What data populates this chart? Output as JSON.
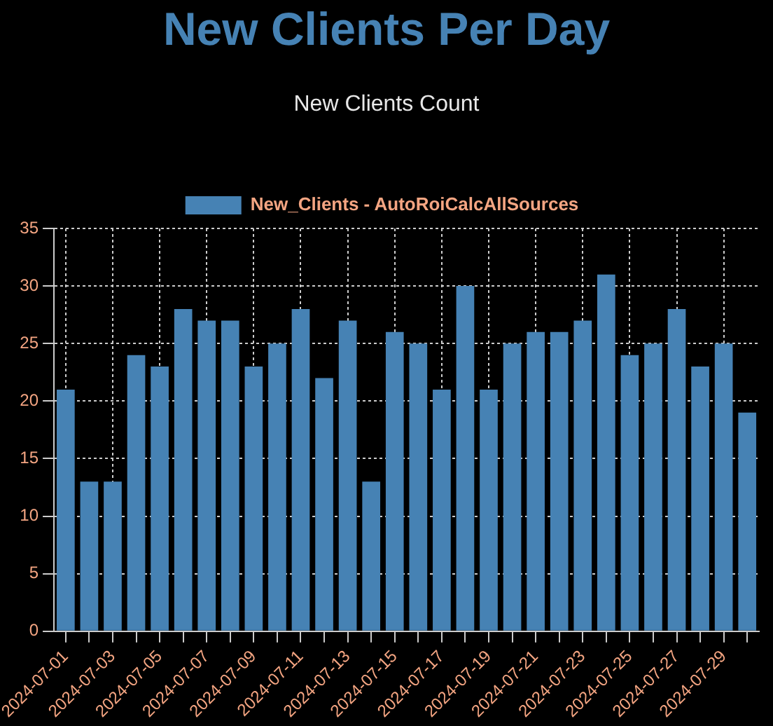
{
  "chart_data": {
    "type": "bar",
    "title": "New Clients Per Day",
    "subtitle": "New Clients Count",
    "categories": [
      "2024-07-01",
      null,
      "2024-07-03",
      null,
      "2024-07-05",
      null,
      "2024-07-07",
      null,
      "2024-07-09",
      null,
      "2024-07-11",
      null,
      "2024-07-13",
      null,
      "2024-07-15",
      null,
      "2024-07-17",
      null,
      "2024-07-19",
      null,
      "2024-07-21",
      null,
      "2024-07-23",
      null,
      "2024-07-25",
      null,
      "2024-07-27",
      null,
      "2024-07-29",
      null
    ],
    "series": [
      {
        "name": "New_Clients - AutoRoiCalcAllSources",
        "color": "#4682b4",
        "values": [
          21,
          13,
          13,
          24,
          23,
          28,
          27,
          27,
          23,
          25,
          28,
          22,
          27,
          13,
          26,
          25,
          21,
          30,
          21,
          25,
          26,
          26,
          27,
          31,
          24,
          25,
          28,
          23,
          25,
          19
        ]
      }
    ],
    "ylim": [
      0,
      35
    ],
    "yticks": [
      0,
      5,
      10,
      15,
      20,
      25,
      30,
      35
    ],
    "grid": true,
    "legend": "top"
  }
}
